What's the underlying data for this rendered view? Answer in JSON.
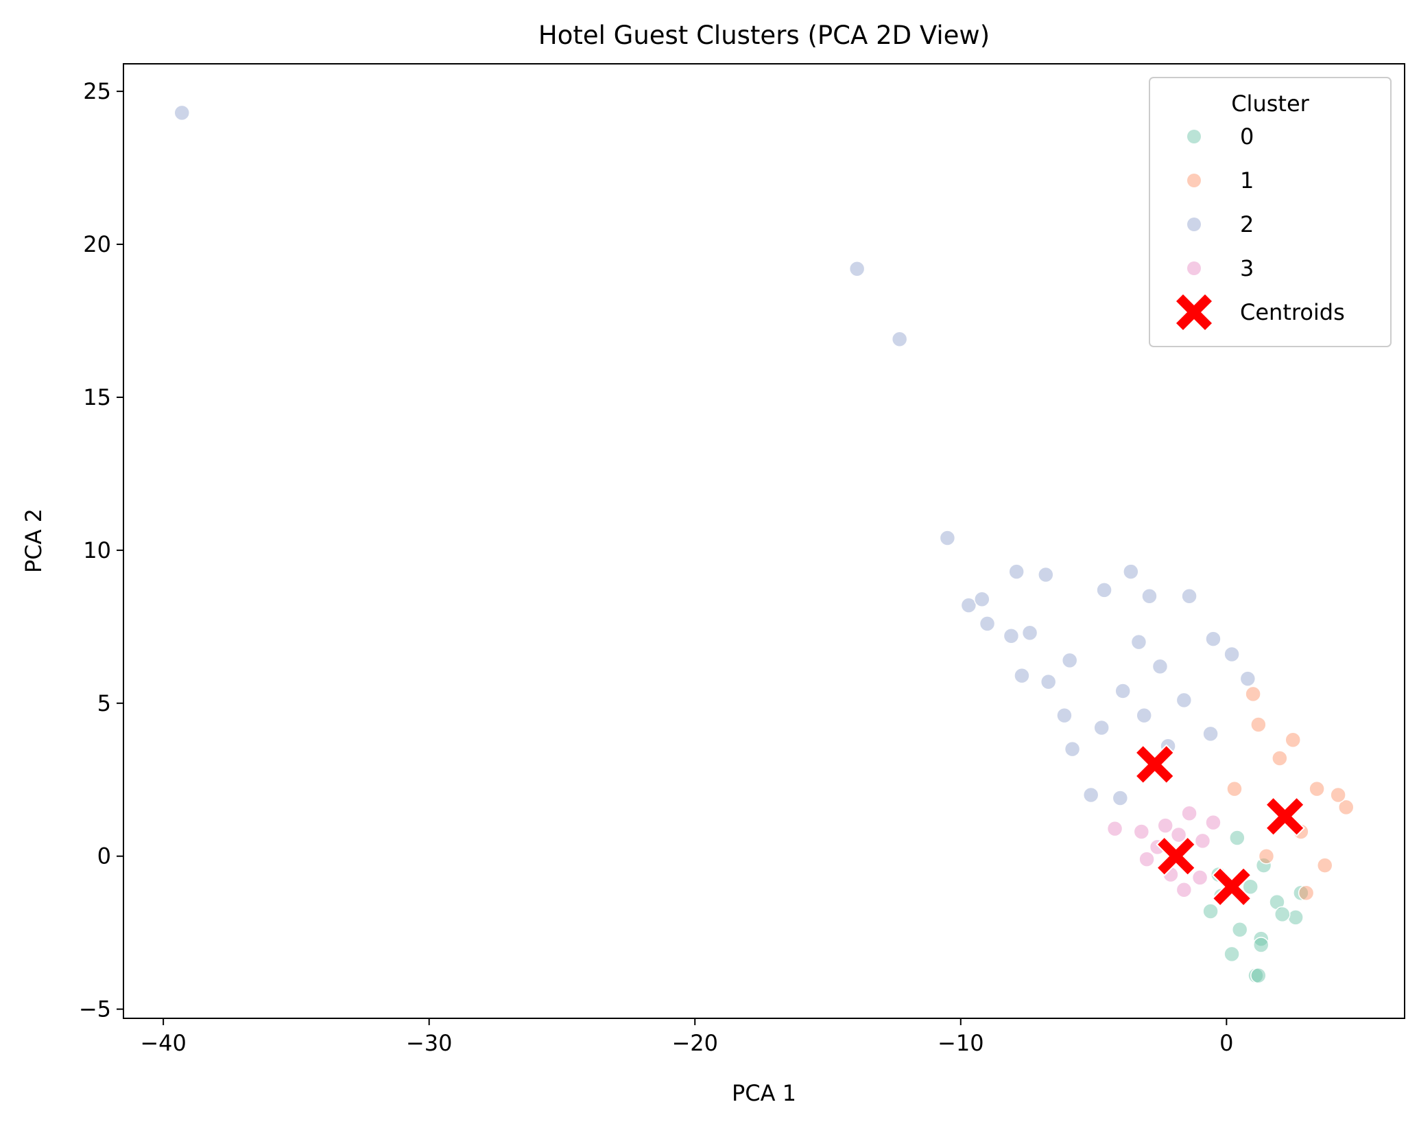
{
  "chart_data": {
    "type": "scatter",
    "title": "Hotel Guest Clusters (PCA 2D View)",
    "xlabel": "PCA 1",
    "ylabel": "PCA 2",
    "xlim": [
      -41.5,
      6.7
    ],
    "ylim": [
      -5.3,
      25.9
    ],
    "x_ticks": [
      -40,
      -30,
      -20,
      -10,
      0
    ],
    "x_tick_labels": [
      "−40",
      "−30",
      "−20",
      "−10",
      "0"
    ],
    "y_ticks": [
      -5,
      0,
      5,
      10,
      15,
      20,
      25
    ],
    "y_tick_labels": [
      "−5",
      "0",
      "5",
      "10",
      "15",
      "20",
      "25"
    ],
    "grid": false,
    "legend": {
      "title": "Cluster",
      "placement": "top-right",
      "entries": [
        "0",
        "1",
        "2",
        "3",
        "Centroids"
      ]
    },
    "series": [
      {
        "name": "0",
        "color": "#66c2a5",
        "points": [
          [
            0.2,
            -3.2
          ],
          [
            1.1,
            -3.9
          ],
          [
            1.2,
            -3.9
          ],
          [
            1.3,
            -2.7
          ],
          [
            2.6,
            -2.0
          ],
          [
            1.3,
            -2.9
          ],
          [
            -0.6,
            -1.8
          ],
          [
            0.5,
            -2.4
          ],
          [
            1.9,
            -1.5
          ],
          [
            2.8,
            -1.2
          ],
          [
            0.9,
            -1.0
          ],
          [
            -0.3,
            -0.6
          ],
          [
            1.4,
            -0.3
          ],
          [
            0.4,
            0.6
          ],
          [
            2.1,
            -1.9
          ],
          [
            -0.2,
            -1.3
          ]
        ]
      },
      {
        "name": "1",
        "color": "#fc8d62",
        "points": [
          [
            1.0,
            5.3
          ],
          [
            4.5,
            1.6
          ],
          [
            3.7,
            -0.3
          ],
          [
            3.0,
            -1.2
          ],
          [
            1.5,
            0.0
          ],
          [
            2.0,
            3.2
          ],
          [
            3.4,
            2.2
          ],
          [
            4.2,
            2.0
          ],
          [
            2.8,
            0.8
          ],
          [
            1.2,
            4.3
          ],
          [
            0.3,
            2.2
          ],
          [
            2.5,
            3.8
          ]
        ]
      },
      {
        "name": "2",
        "color": "#8da0cb",
        "points": [
          [
            -39.3,
            24.3
          ],
          [
            -13.9,
            19.2
          ],
          [
            -12.3,
            16.9
          ],
          [
            -10.5,
            10.4
          ],
          [
            -9.7,
            8.2
          ],
          [
            -9.2,
            8.4
          ],
          [
            -9.0,
            7.6
          ],
          [
            -7.9,
            9.3
          ],
          [
            -6.8,
            9.2
          ],
          [
            -3.6,
            9.3
          ],
          [
            -4.6,
            8.7
          ],
          [
            -2.9,
            8.5
          ],
          [
            -1.4,
            8.5
          ],
          [
            -8.1,
            7.2
          ],
          [
            -7.4,
            7.3
          ],
          [
            -6.7,
            5.7
          ],
          [
            -7.7,
            5.9
          ],
          [
            -6.1,
            4.6
          ],
          [
            -5.8,
            3.5
          ],
          [
            -0.5,
            7.1
          ],
          [
            0.2,
            6.6
          ],
          [
            -2.5,
            6.2
          ],
          [
            -3.9,
            5.4
          ],
          [
            -4.7,
            4.2
          ],
          [
            -3.1,
            4.6
          ],
          [
            -1.6,
            5.1
          ],
          [
            -5.1,
            2.0
          ],
          [
            -4.0,
            1.9
          ],
          [
            -2.2,
            3.6
          ],
          [
            -0.6,
            4.0
          ],
          [
            0.8,
            5.8
          ],
          [
            -5.9,
            6.4
          ],
          [
            -3.3,
            7.0
          ]
        ]
      },
      {
        "name": "3",
        "color": "#e78ac3",
        "points": [
          [
            -4.2,
            0.9
          ],
          [
            -3.2,
            0.8
          ],
          [
            -2.6,
            0.3
          ],
          [
            -2.1,
            -0.6
          ],
          [
            -1.6,
            -1.1
          ],
          [
            -1.0,
            -0.7
          ],
          [
            -0.9,
            0.5
          ],
          [
            -1.4,
            1.4
          ],
          [
            -2.3,
            1.0
          ],
          [
            -3.0,
            -0.1
          ],
          [
            -1.8,
            0.7
          ],
          [
            -0.5,
            1.1
          ]
        ]
      }
    ],
    "centroids": {
      "name": "Centroids",
      "color": "#ff0000",
      "marker": "X",
      "points": [
        [
          -2.7,
          3.0
        ],
        [
          2.2,
          1.3
        ],
        [
          -1.9,
          0.0
        ],
        [
          0.2,
          -1.0
        ]
      ]
    }
  }
}
